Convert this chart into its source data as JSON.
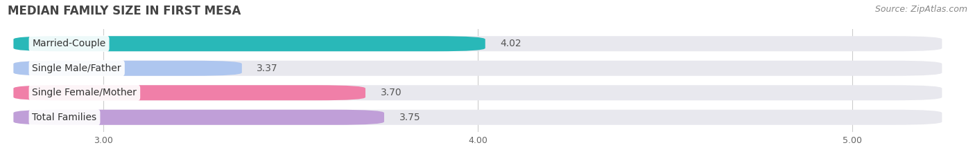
{
  "title": "MEDIAN FAMILY SIZE IN FIRST MESA",
  "source": "Source: ZipAtlas.com",
  "categories": [
    "Married-Couple",
    "Single Male/Father",
    "Single Female/Mother",
    "Total Families"
  ],
  "values": [
    4.02,
    3.37,
    3.7,
    3.75
  ],
  "bar_colors": [
    "#29b8b8",
    "#aec6ef",
    "#f07fa8",
    "#c09fd8"
  ],
  "xlim_min": 2.75,
  "xlim_max": 5.25,
  "xticks": [
    3.0,
    4.0,
    5.0
  ],
  "xtick_labels": [
    "3.00",
    "4.00",
    "5.00"
  ],
  "bar_height": 0.62,
  "background_color": "#ffffff",
  "bar_bg_color": "#e8e8ee",
  "title_fontsize": 12,
  "source_fontsize": 9,
  "label_fontsize": 10,
  "value_fontsize": 10,
  "tick_fontsize": 9
}
